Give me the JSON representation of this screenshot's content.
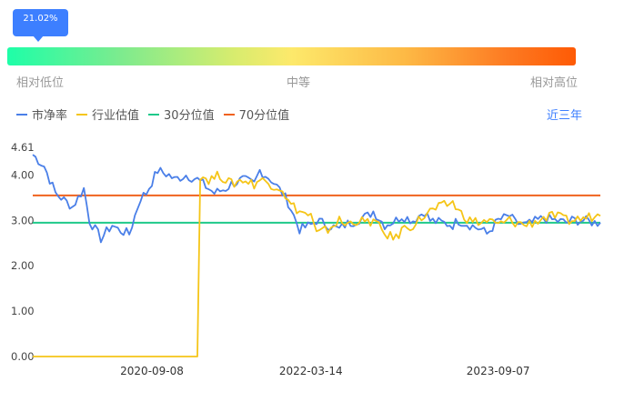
{
  "percentile_tooltip": "21.02%",
  "scale_labels": {
    "low": "相对低位",
    "mid": "中等",
    "high": "相对高位"
  },
  "legend": [
    {
      "label": "市净率",
      "color": "#4a7fe8"
    },
    {
      "label": "行业估值",
      "color": "#f5c518"
    },
    {
      "label": "30分位值",
      "color": "#1ec98a"
    },
    {
      "label": "70分位值",
      "color": "#f0621e"
    }
  ],
  "period_label": "近三年",
  "chart_data": {
    "type": "line",
    "x_tick_labels": [
      "2020-09-08",
      "2022-03-14",
      "2023-09-07"
    ],
    "y_tick_labels": [
      "4.61",
      "4.00",
      "3.00",
      "2.00",
      "1.00",
      "0.00"
    ],
    "y_ticks": [
      4.61,
      4.0,
      3.0,
      2.0,
      1.0,
      0.0
    ],
    "ylim": [
      0,
      4.61
    ],
    "reference_lines": [
      {
        "name": "30分位值",
        "value": 2.95,
        "color": "#1ec98a"
      },
      {
        "name": "70分位值",
        "value": 3.55,
        "color": "#f0621e"
      }
    ],
    "series": [
      {
        "name": "市净率",
        "color": "#4a7fe8",
        "x": [
          0,
          0.02,
          0.04,
          0.05,
          0.07,
          0.09,
          0.1,
          0.12,
          0.14,
          0.15,
          0.17,
          0.19,
          0.2,
          0.22,
          0.24,
          0.25,
          0.27,
          0.29,
          0.3,
          0.32,
          0.34,
          0.35,
          0.37,
          0.39,
          0.4,
          0.42,
          0.44,
          0.45,
          0.47,
          0.49,
          0.5,
          0.52,
          0.54,
          0.55,
          0.57,
          0.59,
          0.6,
          0.62,
          0.64,
          0.65,
          0.67,
          0.69,
          0.7,
          0.72,
          0.74,
          0.75,
          0.77,
          0.79,
          0.8,
          0.82,
          0.84,
          0.85,
          0.87,
          0.89,
          0.9,
          0.92,
          0.94,
          0.95,
          0.97,
          0.99,
          1.0
        ],
        "y": [
          4.45,
          4.2,
          3.6,
          3.5,
          3.3,
          3.7,
          3.0,
          2.6,
          2.9,
          2.8,
          2.7,
          3.5,
          3.6,
          4.1,
          4.0,
          3.9,
          4.0,
          3.9,
          3.8,
          3.6,
          3.7,
          3.8,
          3.9,
          3.8,
          4.1,
          3.9,
          3.6,
          3.4,
          2.8,
          2.9,
          3.0,
          2.9,
          2.8,
          2.9,
          3.0,
          3.1,
          3.2,
          2.9,
          3.0,
          3.1,
          3.0,
          3.2,
          3.0,
          2.95,
          2.9,
          3.0,
          2.9,
          2.8,
          2.7,
          3.0,
          3.1,
          2.95,
          2.9,
          3.0,
          3.05,
          3.0,
          2.95,
          3.0,
          3.0,
          2.95,
          2.95
        ]
      },
      {
        "name": "行业估值",
        "color": "#f5c518",
        "x": [
          0,
          0.29,
          0.295,
          0.31,
          0.33,
          0.35,
          0.37,
          0.39,
          0.4,
          0.42,
          0.44,
          0.45,
          0.47,
          0.49,
          0.5,
          0.52,
          0.54,
          0.55,
          0.57,
          0.59,
          0.6,
          0.62,
          0.64,
          0.65,
          0.67,
          0.69,
          0.7,
          0.72,
          0.74,
          0.75,
          0.77,
          0.79,
          0.8,
          0.82,
          0.84,
          0.85,
          0.87,
          0.89,
          0.9,
          0.92,
          0.94,
          0.95,
          0.97,
          0.99,
          1.0
        ],
        "y": [
          0.0,
          0.0,
          4.0,
          3.9,
          4.0,
          3.8,
          3.9,
          3.8,
          3.9,
          3.8,
          3.7,
          3.4,
          3.2,
          3.1,
          2.7,
          2.8,
          3.0,
          2.9,
          3.0,
          2.95,
          3.0,
          2.7,
          2.6,
          2.8,
          2.9,
          3.1,
          3.2,
          3.3,
          3.4,
          3.2,
          3.0,
          2.95,
          3.0,
          2.9,
          3.0,
          2.95,
          2.9,
          3.0,
          3.05,
          3.1,
          3.0,
          3.0,
          3.05,
          3.1,
          3.1
        ]
      }
    ]
  }
}
